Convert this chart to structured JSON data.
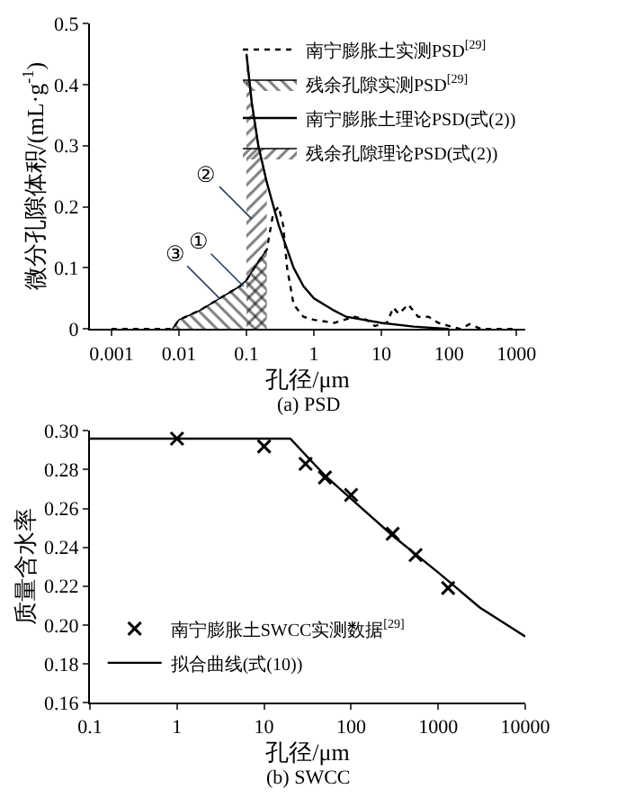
{
  "chart_data": [
    {
      "type": "line",
      "xlabel": "孔径/μm",
      "ylabel": "微分孔隙体积/(mL·g$^{-1}$)",
      "log": "x",
      "legend": "top right",
      "xlim": [
        0.00048,
        1350
      ],
      "ylim": [
        0,
        0.5
      ],
      "xticks": [
        0.001,
        0.01,
        0.1,
        1,
        10,
        100,
        1000
      ],
      "yticks": [
        0,
        0.1,
        0.2,
        0.3,
        0.4,
        0.5
      ],
      "series": [
        {
          "name": "南宁膨胀土实测PSD$^{[29]}$",
          "line_style": "dotted",
          "color": "#000000",
          "x": [
            0.001,
            0.008,
            0.01,
            0.02,
            0.04,
            0.08,
            0.1,
            0.15,
            0.2,
            0.25,
            0.3,
            0.35,
            0.4,
            0.5,
            0.7,
            1,
            2,
            4,
            6,
            8,
            12,
            15,
            18,
            25,
            35,
            50,
            70,
            100,
            150,
            200,
            300,
            1000
          ],
          "values": [
            0,
            0,
            0.015,
            0.03,
            0.05,
            0.07,
            0.08,
            0.11,
            0.13,
            0.19,
            0.2,
            0.17,
            0.1,
            0.04,
            0.02,
            0.015,
            0.01,
            0.02,
            0.015,
            0.005,
            0.01,
            0.035,
            0.025,
            0.04,
            0.02,
            0.02,
            0.01,
            0.005,
            0,
            0.008,
            0,
            0
          ]
        },
        {
          "name": "残余孔隙实测PSD$^{[29]}$",
          "type": "area",
          "color": "#000000",
          "x": [
            0.008,
            0.01,
            0.02,
            0.04,
            0.08,
            0.1,
            0.15,
            0.2
          ],
          "values": [
            0,
            0.015,
            0.03,
            0.05,
            0.07,
            0.08,
            0.11,
            0.13
          ]
        },
        {
          "name": "南宁膨胀土理论PSD(式(2))",
          "line_style": "solid",
          "color": "#000000",
          "x": [
            0.1,
            0.12,
            0.15,
            0.2,
            0.3,
            0.5,
            0.7,
            1,
            2,
            3,
            10,
            30,
            100
          ],
          "values": [
            0.45,
            0.37,
            0.3,
            0.24,
            0.17,
            0.1,
            0.07,
            0.05,
            0.03,
            0.02,
            0.01,
            0.004,
            0
          ]
        },
        {
          "name": "残余孔隙理论PSD(式(2))",
          "type": "area",
          "color": "#000000",
          "x": [
            0.1,
            0.12,
            0.15,
            0.2
          ],
          "values": [
            0.45,
            0.37,
            0.3,
            0.24
          ]
        }
      ],
      "annotations": [
        {
          "text": "①",
          "x": 0.09,
          "y": 0.07
        },
        {
          "text": "②",
          "x": 0.12,
          "y": 0.18
        },
        {
          "text": "③",
          "x": 0.04,
          "y": 0.05
        },
        "(a) PSD"
      ]
    },
    {
      "type": "line",
      "xlabel": "孔径/μm",
      "ylabel": "质量含水率",
      "log": "x",
      "legend": "bottom left",
      "xlim": [
        0.1,
        10000
      ],
      "ylim": [
        0.16,
        0.3
      ],
      "xticks": [
        0.1,
        1,
        10,
        100,
        1000,
        10000
      ],
      "yticks": [
        0.16,
        0.18,
        {
          "value": 0.2,
          "label": "0.20"
        },
        0.22,
        0.24,
        0.26,
        0.28,
        {
          "value": 0.3,
          "label": "0.30"
        }
      ],
      "series": [
        {
          "name": "南宁膨胀土SWCC实测数据$^{[29]}$",
          "type": "scatter",
          "marker": "cross",
          "color": "#000000",
          "x": [
            1,
            10,
            30,
            50,
            100,
            300,
            550,
            1300
          ],
          "values": [
            0.296,
            0.292,
            0.283,
            0.276,
            0.267,
            0.247,
            0.236,
            0.219
          ]
        },
        {
          "name": "拟合曲线(式(10))",
          "line_style": "solid",
          "color": "#000000",
          "x": [
            0.1,
            20,
            50,
            100,
            300,
            1000,
            3000,
            10000
          ],
          "values": [
            0.296,
            0.296,
            0.277,
            0.265,
            0.246,
            0.227,
            0.209,
            0.194
          ]
        }
      ],
      "annotations": [
        "(b) SWCC"
      ]
    }
  ]
}
